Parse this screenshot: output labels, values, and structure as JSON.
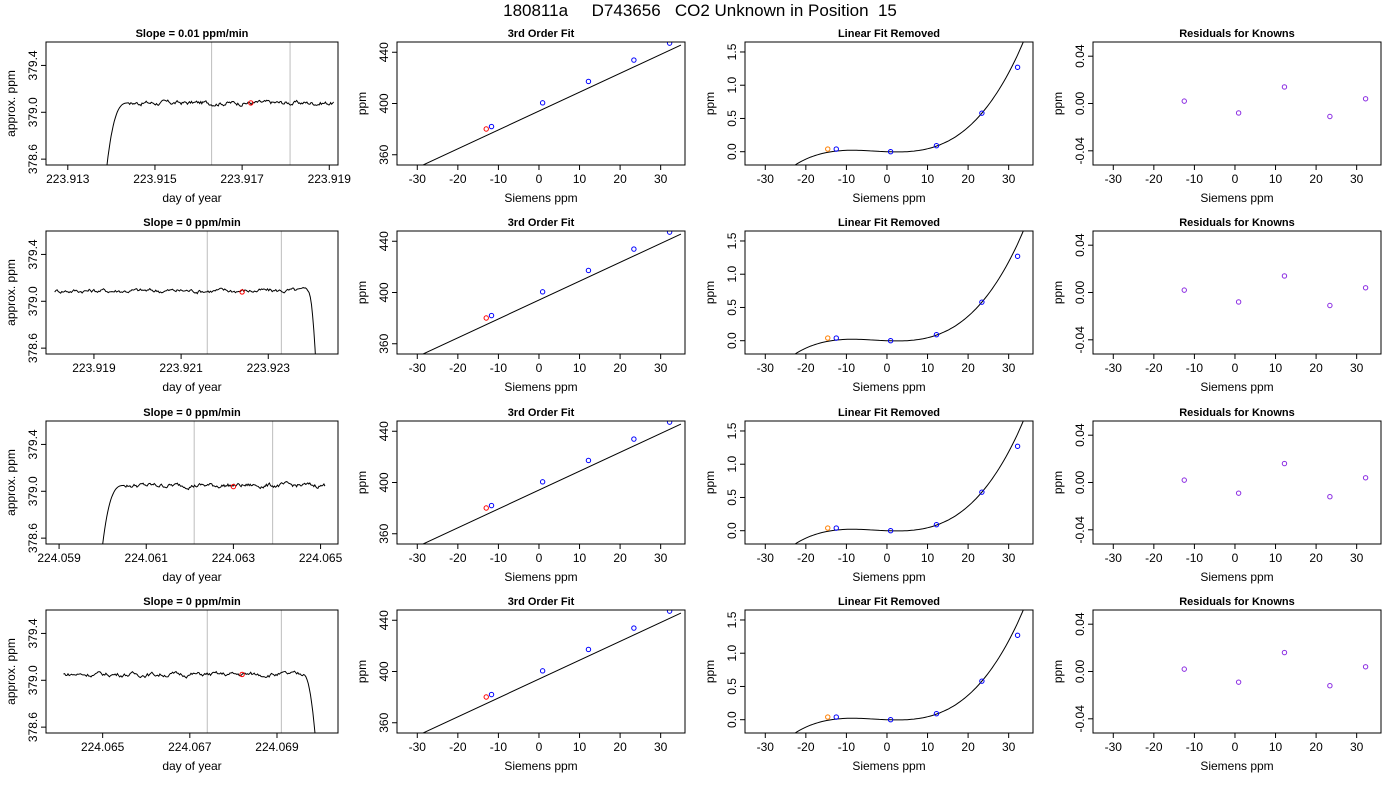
{
  "figure": {
    "title": "180811a     D743656   CO2 Unknown in Position  15"
  },
  "chart_data": [
    {
      "type": "line",
      "name": "time-series-1",
      "title": "Slope =  0.01  ppm/min",
      "xlabel": "day of year",
      "ylabel": "approx. ppm",
      "xlim": [
        223.9125,
        223.9192
      ],
      "ylim": [
        378.55,
        379.6
      ],
      "xticks": [
        223.913,
        223.915,
        223.917,
        223.919
      ],
      "xtick_labels": [
        "223.913",
        "223.915",
        "223.917",
        "223.919"
      ],
      "yticks": [
        378.6,
        379.0,
        379.4
      ],
      "ytick_labels": [
        "378.6",
        "379.0",
        "379.4"
      ],
      "vlines": [
        223.9163,
        223.9181
      ],
      "x_range": [
        223.9139,
        223.9191
      ],
      "rise_end": 223.9144,
      "fall_start": null,
      "plateau": 379.08,
      "start_value": 378.55,
      "end_value": 379.09,
      "mean_point": {
        "x": 223.9172,
        "y": 379.08
      }
    },
    {
      "type": "line",
      "name": "time-series-2",
      "title": "Slope =  0  ppm/min",
      "xlabel": "day of year",
      "ylabel": "approx. ppm",
      "xlim": [
        223.9179,
        223.9246
      ],
      "ylim": [
        378.55,
        379.6
      ],
      "xticks": [
        223.919,
        223.921,
        223.923
      ],
      "xtick_labels": [
        "223.919",
        "223.921",
        "223.923"
      ],
      "yticks": [
        378.6,
        379.0,
        379.4
      ],
      "ytick_labels": [
        "378.6",
        "379.0",
        "379.4"
      ],
      "vlines": [
        223.9216,
        223.9233
      ],
      "x_range": [
        223.9181,
        223.9241
      ],
      "rise_end": null,
      "fall_start": 223.9239,
      "plateau": 379.09,
      "start_value": 379.08,
      "end_value": 378.55,
      "mean_point": {
        "x": 223.9224,
        "y": 379.08
      }
    },
    {
      "type": "line",
      "name": "time-series-3",
      "title": "Slope =  0  ppm/min",
      "xlabel": "day of year",
      "ylabel": "approx. ppm",
      "xlim": [
        224.0587,
        224.0654
      ],
      "ylim": [
        378.55,
        379.6
      ],
      "xticks": [
        224.059,
        224.061,
        224.063,
        224.065
      ],
      "xtick_labels": [
        "224.059",
        "224.061",
        "224.063",
        "224.065"
      ],
      "yticks": [
        378.6,
        379.0,
        379.4
      ],
      "ytick_labels": [
        "378.6",
        "379.0",
        "379.4"
      ],
      "vlines": [
        224.0621,
        224.0639
      ],
      "x_range": [
        224.06,
        224.0651
      ],
      "rise_end": 224.0605,
      "fall_start": null,
      "plateau": 379.05,
      "start_value": 378.55,
      "end_value": 379.04,
      "mean_point": {
        "x": 224.063,
        "y": 379.04
      }
    },
    {
      "type": "line",
      "name": "time-series-4",
      "title": "Slope =  0  ppm/min",
      "xlabel": "day of year",
      "ylabel": "approx. ppm",
      "xlim": [
        224.0637,
        224.0704
      ],
      "ylim": [
        378.55,
        379.6
      ],
      "xticks": [
        224.065,
        224.067,
        224.069
      ],
      "xtick_labels": [
        "224.065",
        "224.067",
        "224.069"
      ],
      "yticks": [
        378.6,
        379.0,
        379.4
      ],
      "ytick_labels": [
        "378.6",
        "379.0",
        "379.4"
      ],
      "vlines": [
        224.0674,
        224.0691
      ],
      "x_range": [
        224.0641,
        224.0699
      ],
      "rise_end": null,
      "fall_start": 224.0696,
      "plateau": 379.05,
      "start_value": 379.05,
      "end_value": 378.55,
      "mean_point": {
        "x": 224.0682,
        "y": 379.05
      }
    },
    {
      "type": "line",
      "name": "third-order-fit",
      "title": "3rd Order Fit",
      "xlabel": "Siemens ppm",
      "ylabel": "ppm",
      "xlim": [
        -35,
        36
      ],
      "ylim": [
        352,
        448
      ],
      "xticks": [
        -30,
        -20,
        -10,
        0,
        10,
        20,
        30
      ],
      "xtick_labels": [
        "-30",
        "-20",
        "-10",
        "0",
        "10",
        "20",
        "30"
      ],
      "yticks": [
        360,
        400,
        440
      ],
      "ytick_labels": [
        "360",
        "400",
        "440"
      ],
      "fit_line": {
        "x": [
          -33,
          35
        ],
        "y": [
          345.5,
          445.6
        ]
      },
      "points": [
        {
          "x": -13,
          "y": 380.1,
          "color": "#ff0000"
        },
        {
          "x": -11.7,
          "y": 382.0,
          "color": "#0000ff"
        },
        {
          "x": 0.9,
          "y": 400.5,
          "color": "#0000ff"
        },
        {
          "x": 12.2,
          "y": 417.2,
          "color": "#0000ff"
        },
        {
          "x": 23.4,
          "y": 433.9,
          "color": "#0000ff"
        },
        {
          "x": 32.2,
          "y": 447.1,
          "color": "#0000ff"
        }
      ]
    },
    {
      "type": "line",
      "name": "linear-fit-removed",
      "title": "Linear Fit Removed",
      "xlabel": "Siemens ppm",
      "ylabel": "ppm",
      "xlim": [
        -35,
        36
      ],
      "ylim": [
        -0.2,
        1.65
      ],
      "xticks": [
        -30,
        -20,
        -10,
        0,
        10,
        20,
        30
      ],
      "xtick_labels": [
        "-30",
        "-20",
        "-10",
        "0",
        "10",
        "20",
        "30"
      ],
      "yticks": [
        0.0,
        0.5,
        1.0,
        1.5
      ],
      "ytick_labels": [
        "0.0",
        "0.5",
        "1.0",
        "1.5"
      ],
      "cubic": {
        "a": 3.6e-05,
        "b": 0.00032,
        "c": -0.0024,
        "d": 0.0
      },
      "points": [
        {
          "x": -14.6,
          "y": 0.04,
          "color": "#ff7f00"
        },
        {
          "x": -12.5,
          "y": 0.04,
          "color": "#0000ff"
        },
        {
          "x": 0.9,
          "y": 0.0,
          "color": "#0000ff"
        },
        {
          "x": 12.2,
          "y": 0.09,
          "color": "#0000ff"
        },
        {
          "x": 23.4,
          "y": 0.58,
          "color": "#0000ff"
        },
        {
          "x": 32.2,
          "y": 1.27,
          "color": "#0000ff"
        }
      ]
    },
    {
      "type": "scatter",
      "name": "residuals-for-knowns",
      "title": "Residuals for Knowns",
      "xlabel": "Siemens ppm",
      "ylabel": "ppm",
      "xlim": [
        -35,
        36
      ],
      "ylim": [
        -0.052,
        0.052
      ],
      "xticks": [
        -30,
        -20,
        -10,
        0,
        10,
        20,
        30
      ],
      "xtick_labels": [
        "-30",
        "-20",
        "-10",
        "0",
        "10",
        "20",
        "30"
      ],
      "yticks": [
        -0.04,
        0.0,
        0.04
      ],
      "ytick_labels": [
        "-0.04",
        "0.00",
        "0.04"
      ],
      "point_color": "#8a2be2",
      "rows": [
        {
          "x": [
            -12.5,
            0.9,
            12.2,
            23.4,
            32.2
          ],
          "y": [
            0.002,
            -0.008,
            0.014,
            -0.011,
            0.004
          ]
        },
        {
          "x": [
            -12.5,
            0.9,
            12.2,
            23.4,
            32.2
          ],
          "y": [
            0.002,
            -0.008,
            0.014,
            -0.011,
            0.004
          ]
        },
        {
          "x": [
            -12.5,
            0.9,
            12.2,
            23.4,
            32.2
          ],
          "y": [
            0.002,
            -0.009,
            0.016,
            -0.012,
            0.004
          ]
        },
        {
          "x": [
            -12.5,
            0.9,
            12.2,
            23.4,
            32.2
          ],
          "y": [
            0.002,
            -0.009,
            0.016,
            -0.012,
            0.004
          ]
        }
      ]
    }
  ]
}
